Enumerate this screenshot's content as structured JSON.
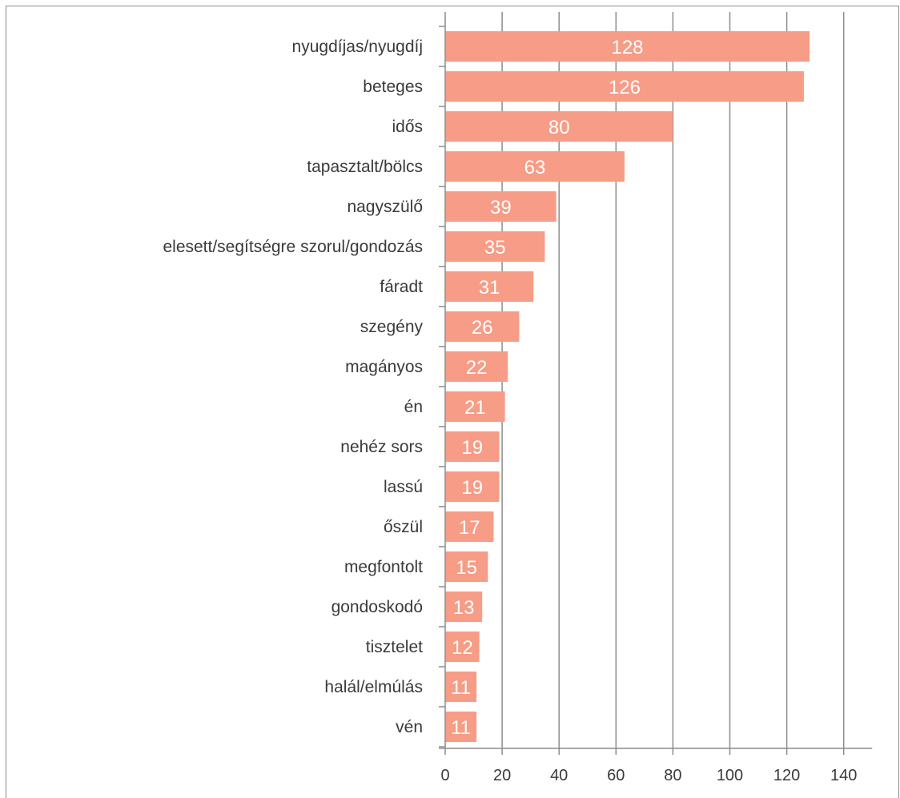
{
  "chart_data": {
    "type": "bar",
    "orientation": "horizontal",
    "categories": [
      "nyugdíjas/nyugdíj",
      "beteges",
      "idős",
      "tapasztalt/bölcs",
      "nagyszülő",
      "elesett/segítségre szorul/gondozás",
      "fáradt",
      "szegény",
      "magányos",
      "én",
      "nehéz sors",
      "lassú",
      "őszül",
      "megfontolt",
      "gondoskodó",
      "tisztelet",
      "halál/elmúlás",
      "vén"
    ],
    "values": [
      128,
      126,
      80,
      63,
      39,
      35,
      31,
      26,
      22,
      21,
      19,
      19,
      17,
      15,
      13,
      12,
      11,
      11
    ],
    "data_labels": [
      "128",
      "126",
      "80",
      "63",
      "39",
      "35",
      "31",
      "26",
      "22",
      "21",
      "19",
      "19",
      "17",
      "15",
      "13",
      "12",
      "11",
      "11"
    ],
    "xlim": [
      0,
      150
    ],
    "xticks": [
      0,
      20,
      40,
      60,
      80,
      100,
      120,
      140
    ],
    "xtick_labels": [
      "0",
      "20",
      "40",
      "60",
      "80",
      "100",
      "120",
      "140"
    ],
    "grid": "vertical",
    "bar_color": "#f79c86",
    "grid_color": "#8c8c8c",
    "title": "",
    "xlabel": "",
    "ylabel": ""
  }
}
